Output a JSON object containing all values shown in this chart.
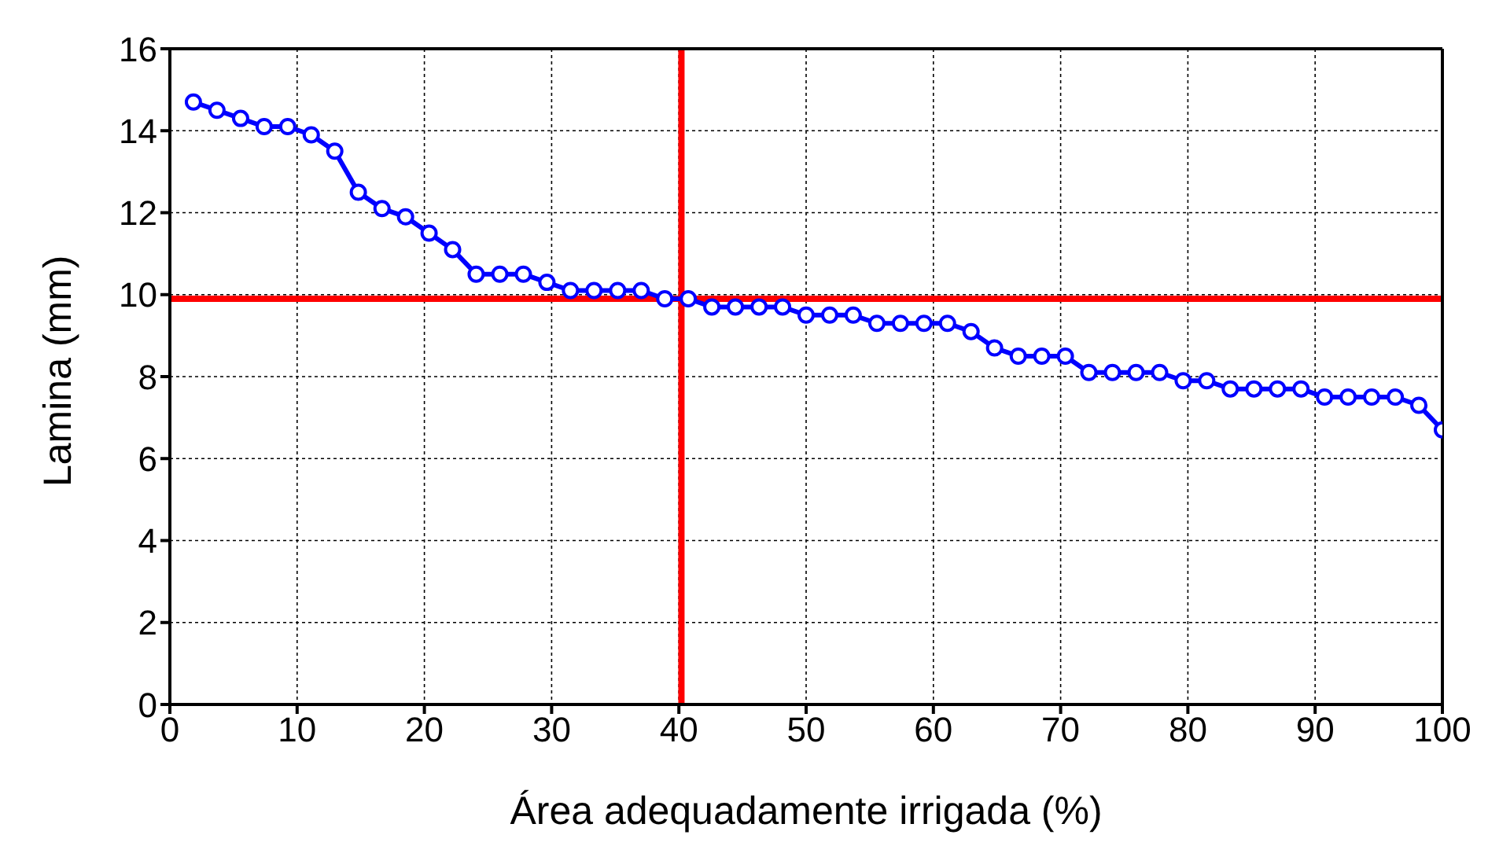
{
  "chart_data": {
    "type": "line",
    "xlabel": "Área adequadamente irrigada (%)",
    "ylabel": "Lamina (mm)",
    "x": [
      1.85,
      3.7,
      5.56,
      7.41,
      9.26,
      11.11,
      12.96,
      14.81,
      16.67,
      18.52,
      20.37,
      22.22,
      24.07,
      25.93,
      27.78,
      29.63,
      31.48,
      33.33,
      35.19,
      37.04,
      38.89,
      40.74,
      42.59,
      44.44,
      46.3,
      48.15,
      50,
      51.85,
      53.7,
      55.56,
      57.41,
      59.26,
      61.11,
      62.96,
      64.81,
      66.67,
      68.52,
      70.37,
      72.22,
      74.07,
      75.93,
      77.78,
      79.63,
      81.48,
      83.33,
      85.19,
      87.04,
      88.89,
      90.74,
      92.59,
      94.44,
      96.3,
      98.15,
      100
    ],
    "series": [
      {
        "color": "#0000ff",
        "values": [
          14.7,
          14.5,
          14.3,
          14.1,
          14.1,
          13.9,
          13.5,
          12.5,
          12.1,
          11.9,
          11.5,
          11.1,
          10.5,
          10.5,
          10.5,
          10.3,
          10.1,
          10.1,
          10.1,
          10.1,
          9.9,
          9.9,
          9.7,
          9.7,
          9.7,
          9.7,
          9.5,
          9.5,
          9.5,
          9.3,
          9.3,
          9.3,
          9.3,
          9.1,
          8.7,
          8.5,
          8.5,
          8.5,
          8.1,
          8.1,
          8.1,
          8.1,
          7.9,
          7.9,
          7.7,
          7.7,
          7.7,
          7.7,
          7.5,
          7.5,
          7.5,
          7.5,
          7.3,
          6.7
        ]
      }
    ],
    "xlim": [
      0,
      100
    ],
    "xticks": [
      0,
      10,
      20,
      30,
      40,
      50,
      60,
      70,
      80,
      90,
      100
    ],
    "ylim": [
      0,
      16
    ],
    "yticks": [
      0,
      2,
      4,
      6,
      8,
      10,
      12,
      14,
      16
    ],
    "ref_lines": [
      {
        "axis": "y",
        "value": 9.9,
        "color": "#ff0000"
      },
      {
        "axis": "x",
        "value": 40.2,
        "color": "#ff0000"
      }
    ],
    "grid": true,
    "legend": false,
    "marker": "circle",
    "line_style": "solid"
  }
}
